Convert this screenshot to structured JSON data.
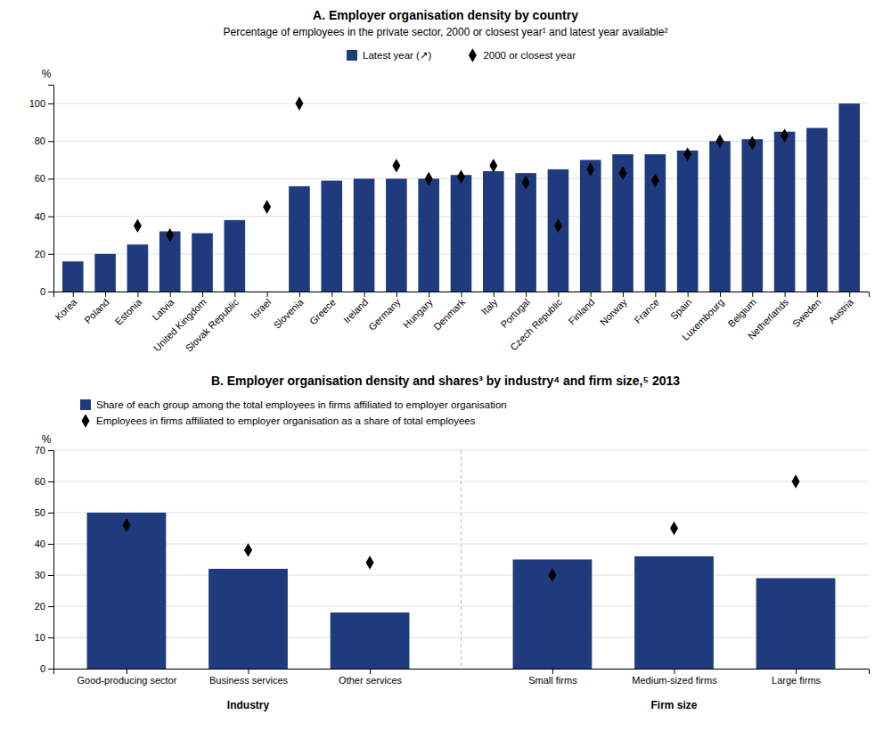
{
  "chart_data": [
    {
      "type": "bar",
      "title": "A. Employer organisation density by country",
      "subtitle": "Percentage of employees in the private sector, 2000 or closest year¹ and latest year available²",
      "ylabel": "%",
      "categories": [
        "Korea",
        "Poland",
        "Estonia",
        "Latvia",
        "United Kingdom",
        "Slovak Republic",
        "Israel",
        "Slovenia",
        "Greece",
        "Ireland",
        "Germany",
        "Hungary",
        "Denmark",
        "Italy",
        "Portugal",
        "Czech Republic",
        "Finland",
        "Norway",
        "France",
        "Spain",
        "Luxembourg",
        "Belgium",
        "Netherlands",
        "Sweden",
        "Austria"
      ],
      "series": [
        {
          "name": "Latest year (↗)",
          "type": "bar",
          "color": "#1F3A7D",
          "values": [
            16,
            20,
            25,
            32,
            31,
            38,
            null,
            56,
            59,
            60,
            60,
            60,
            62,
            64,
            63,
            65,
            70,
            73,
            73,
            75,
            80,
            81,
            85,
            87,
            100
          ]
        },
        {
          "name": "2000 or closest year",
          "type": "scatter",
          "marker": "diamond",
          "color": "#000000",
          "values": [
            null,
            null,
            35,
            30,
            null,
            null,
            45,
            100,
            null,
            null,
            67,
            60,
            61,
            67,
            58,
            35,
            65,
            63,
            59,
            73,
            80,
            79,
            83,
            null,
            null
          ]
        }
      ],
      "ylim": [
        0,
        110
      ],
      "yticks": [
        0,
        20,
        40,
        60,
        80,
        100
      ],
      "grid": true,
      "legend": "top"
    },
    {
      "type": "bar",
      "title": "B. Employer organisation density and shares³ by industry⁴ and firm size,⁵ 2013",
      "ylabel": "%",
      "categories": [
        "Good-producing sector",
        "Business services",
        "Other services",
        "Small firms",
        "Medium-sized firms",
        "Large firms"
      ],
      "group_labels": [
        "Industry",
        "Firm size"
      ],
      "series": [
        {
          "name": "Share of each group among the total employees in firms affiliated to employer organisation",
          "type": "bar",
          "color": "#1F3A7D",
          "values": [
            50,
            32,
            18,
            35,
            36,
            29
          ]
        },
        {
          "name": "Employees in firms affiliated to employer organisation as a share of total employees",
          "type": "scatter",
          "marker": "diamond",
          "color": "#000000",
          "values": [
            46,
            38,
            34,
            30,
            45,
            60
          ]
        }
      ],
      "ylim": [
        0,
        70
      ],
      "yticks": [
        0,
        10,
        20,
        30,
        40,
        50,
        60,
        70
      ],
      "grid": true,
      "legend": "top"
    }
  ]
}
